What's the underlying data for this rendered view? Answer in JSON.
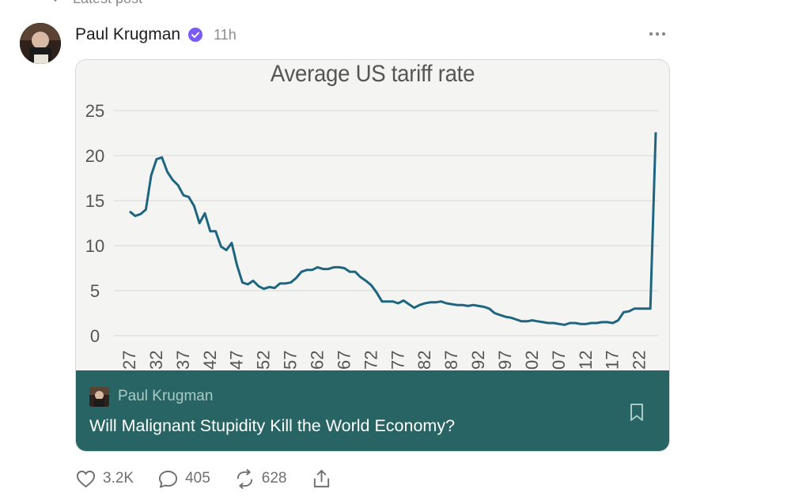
{
  "context": {
    "label": "Latest post"
  },
  "post": {
    "author": "Paul Krugman",
    "timestamp": "11h",
    "verified": true
  },
  "preview": {
    "author": "Paul Krugman",
    "title": "Will Malignant Stupidity Kill the World Economy?",
    "background_color": "#286463"
  },
  "actions": {
    "likes": "3.2K",
    "comments": "405",
    "restacks": "628"
  },
  "colors": {
    "line": "#1e6680",
    "verified": "#7a5af5",
    "card_background": "#f4f4f3"
  },
  "chart_data": {
    "type": "line",
    "title": "Average US tariff rate",
    "xlabel": "",
    "ylabel": "",
    "ylim": [
      0,
      25
    ],
    "yticks": [
      "0",
      "5",
      "10",
      "15",
      "20",
      "25"
    ],
    "xtick_labels": [
      "27",
      "32",
      "37",
      "42",
      "47",
      "52",
      "57",
      "62",
      "67",
      "72",
      "77",
      "82",
      "87",
      "92",
      "97",
      "02",
      "07",
      "12",
      "17",
      "22"
    ],
    "grid": true,
    "series": [
      {
        "x": [
          1927,
          1928,
          1929,
          1930,
          1931,
          1932,
          1933,
          1934,
          1935,
          1936,
          1937,
          1938,
          1939,
          1940,
          1941,
          1942,
          1943,
          1944,
          1945,
          1946,
          1947,
          1948,
          1949,
          1950,
          1951,
          1952,
          1953,
          1954,
          1955,
          1956,
          1957,
          1958,
          1959,
          1960,
          1961,
          1962,
          1963,
          1964,
          1965,
          1966,
          1967,
          1968,
          1969,
          1970,
          1971,
          1972,
          1973,
          1974,
          1975,
          1976,
          1977,
          1978,
          1979,
          1980,
          1981,
          1982,
          1983,
          1984,
          1985,
          1986,
          1987,
          1988,
          1989,
          1990,
          1991,
          1992,
          1993,
          1994,
          1995,
          1996,
          1997,
          1998,
          1999,
          2000,
          2001,
          2002,
          2003,
          2004,
          2005,
          2006,
          2007,
          2008,
          2009,
          2010,
          2011,
          2012,
          2013,
          2014,
          2015,
          2016,
          2017,
          2018,
          2019,
          2020,
          2021,
          2022,
          2023,
          2024,
          2025
        ],
        "y": [
          13.8,
          13.3,
          13.5,
          14.0,
          17.8,
          19.6,
          19.8,
          18.2,
          17.3,
          16.7,
          15.6,
          15.4,
          14.4,
          12.5,
          13.6,
          11.6,
          11.6,
          9.9,
          9.5,
          10.3,
          7.8,
          5.9,
          5.7,
          6.1,
          5.5,
          5.2,
          5.4,
          5.3,
          5.8,
          5.8,
          5.9,
          6.4,
          7.1,
          7.3,
          7.3,
          7.6,
          7.4,
          7.4,
          7.6,
          7.6,
          7.5,
          7.1,
          7.1,
          6.5,
          6.1,
          5.6,
          4.8,
          3.8,
          3.8,
          3.8,
          3.6,
          3.9,
          3.5,
          3.1,
          3.4,
          3.6,
          3.7,
          3.7,
          3.8,
          3.6,
          3.5,
          3.4,
          3.4,
          3.3,
          3.4,
          3.3,
          3.2,
          3.0,
          2.5,
          2.3,
          2.1,
          2.0,
          1.8,
          1.6,
          1.6,
          1.7,
          1.6,
          1.5,
          1.4,
          1.4,
          1.3,
          1.2,
          1.4,
          1.4,
          1.3,
          1.3,
          1.4,
          1.4,
          1.5,
          1.5,
          1.4,
          1.7,
          2.6,
          2.7,
          3.0,
          3.0,
          3.0,
          3.0,
          22.6
        ]
      }
    ]
  }
}
